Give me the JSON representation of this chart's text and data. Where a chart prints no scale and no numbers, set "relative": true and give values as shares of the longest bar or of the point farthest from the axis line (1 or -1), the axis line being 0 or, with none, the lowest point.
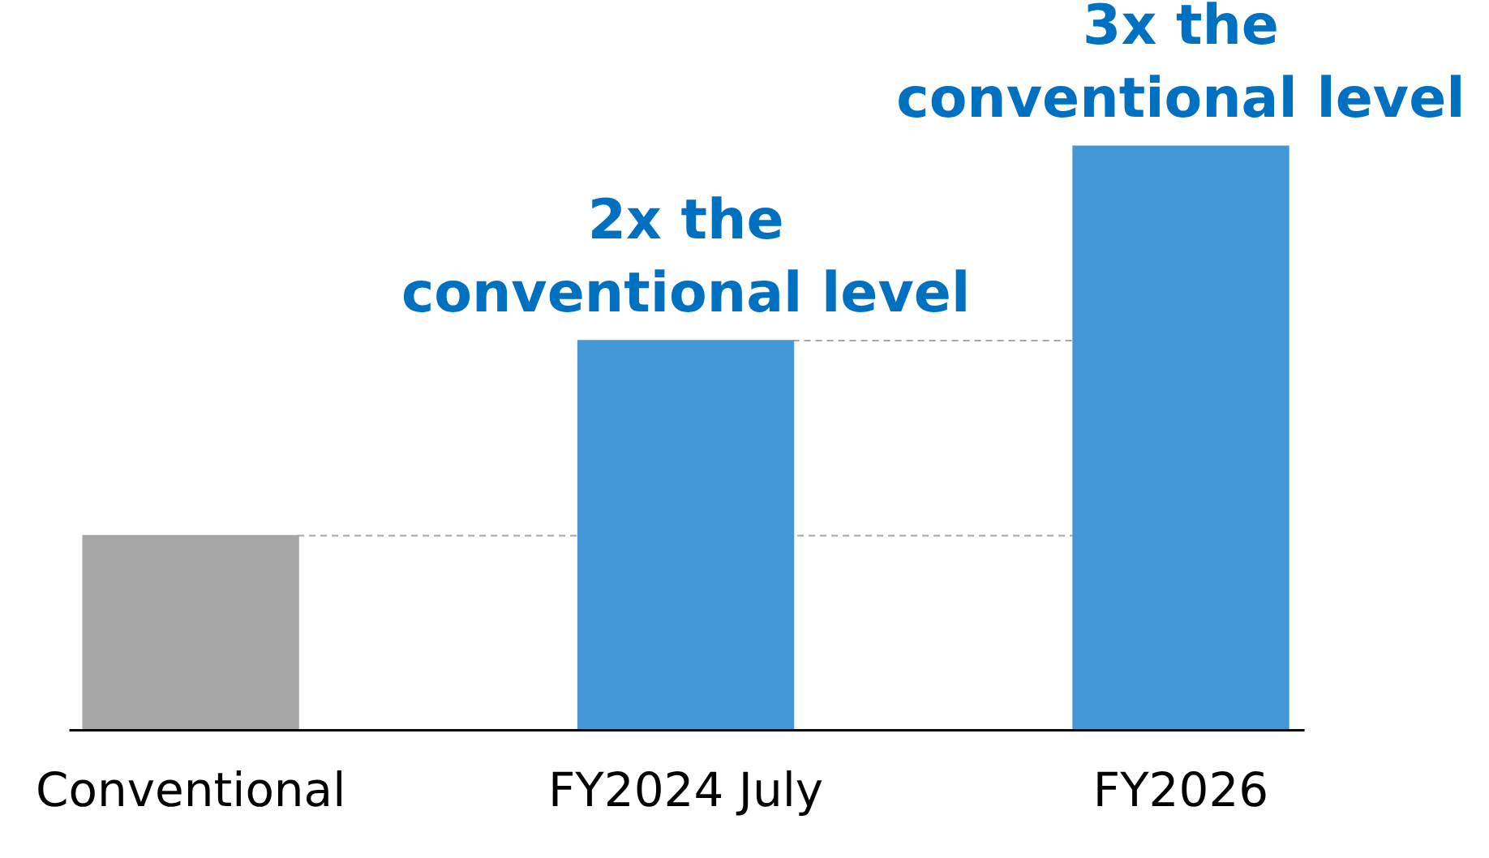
{
  "chart_data": {
    "type": "bar",
    "relative": true,
    "categories": [
      "Conventional",
      "FY2024 July",
      "FY2026"
    ],
    "values": [
      0.333,
      0.667,
      1
    ],
    "colors": [
      "#a6a6a6",
      "#4397d6",
      "#4397d6"
    ],
    "ref_lines": [
      {
        "axis": "y",
        "value": 0.333,
        "color": "#a6a6a6",
        "line_style": "dashed"
      },
      {
        "axis": "y",
        "value": 0.667,
        "color": "#a6a6a6",
        "line_style": "dashed"
      }
    ],
    "annotations": [
      {
        "text": "2x the conventional level",
        "x": "FY2024 July",
        "y": 0.667
      },
      {
        "text": "3x the conventional level",
        "x": "FY2026",
        "y": 1
      }
    ],
    "grid": false,
    "legend": false
  }
}
